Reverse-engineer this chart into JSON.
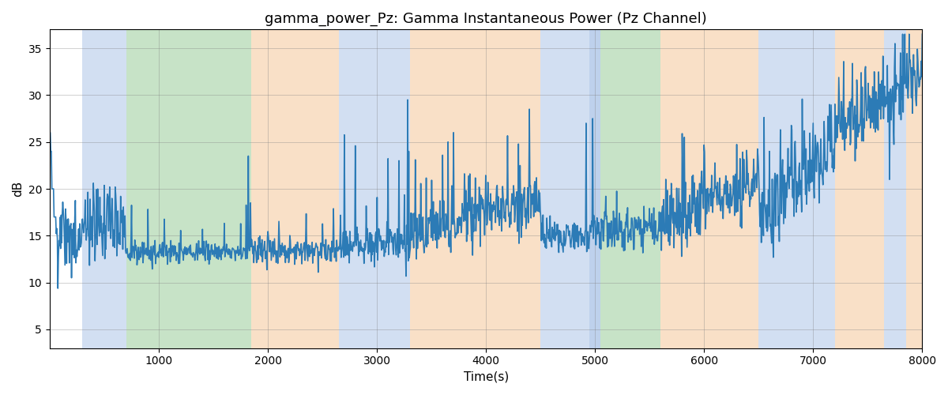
{
  "title": "gamma_power_Pz: Gamma Instantaneous Power (Pz Channel)",
  "xlabel": "Time(s)",
  "ylabel": "dB",
  "xlim": [
    0,
    8000
  ],
  "ylim": [
    3,
    37
  ],
  "yticks": [
    5,
    10,
    15,
    20,
    25,
    30,
    35
  ],
  "xticks": [
    1000,
    2000,
    3000,
    4000,
    5000,
    6000,
    7000,
    8000
  ],
  "line_color": "#2c7bb6",
  "line_width": 1.2,
  "background_color": "#ffffff",
  "bands": [
    {
      "xmin": 300,
      "xmax": 700,
      "color": "#aec6e8",
      "alpha": 0.55
    },
    {
      "xmin": 700,
      "xmax": 1850,
      "color": "#90c990",
      "alpha": 0.5
    },
    {
      "xmin": 1850,
      "xmax": 2650,
      "color": "#f5c89a",
      "alpha": 0.55
    },
    {
      "xmin": 2650,
      "xmax": 3300,
      "color": "#aec6e8",
      "alpha": 0.55
    },
    {
      "xmin": 3300,
      "xmax": 4500,
      "color": "#f5c89a",
      "alpha": 0.55
    },
    {
      "xmin": 4500,
      "xmax": 4950,
      "color": "#aec6e8",
      "alpha": 0.55
    },
    {
      "xmin": 4950,
      "xmax": 5050,
      "color": "#aec6e8",
      "alpha": 0.8
    },
    {
      "xmin": 5050,
      "xmax": 5600,
      "color": "#90c990",
      "alpha": 0.5
    },
    {
      "xmin": 5600,
      "xmax": 6500,
      "color": "#f5c89a",
      "alpha": 0.55
    },
    {
      "xmin": 6500,
      "xmax": 7200,
      "color": "#aec6e8",
      "alpha": 0.55
    },
    {
      "xmin": 7200,
      "xmax": 7650,
      "color": "#f5c89a",
      "alpha": 0.55
    },
    {
      "xmin": 7650,
      "xmax": 7850,
      "color": "#aec6e8",
      "alpha": 0.55
    },
    {
      "xmin": 7850,
      "xmax": 8000,
      "color": "#f5c89a",
      "alpha": 0.55
    }
  ],
  "figsize": [
    12.0,
    5.0
  ],
  "dpi": 100,
  "title_fontsize": 13
}
